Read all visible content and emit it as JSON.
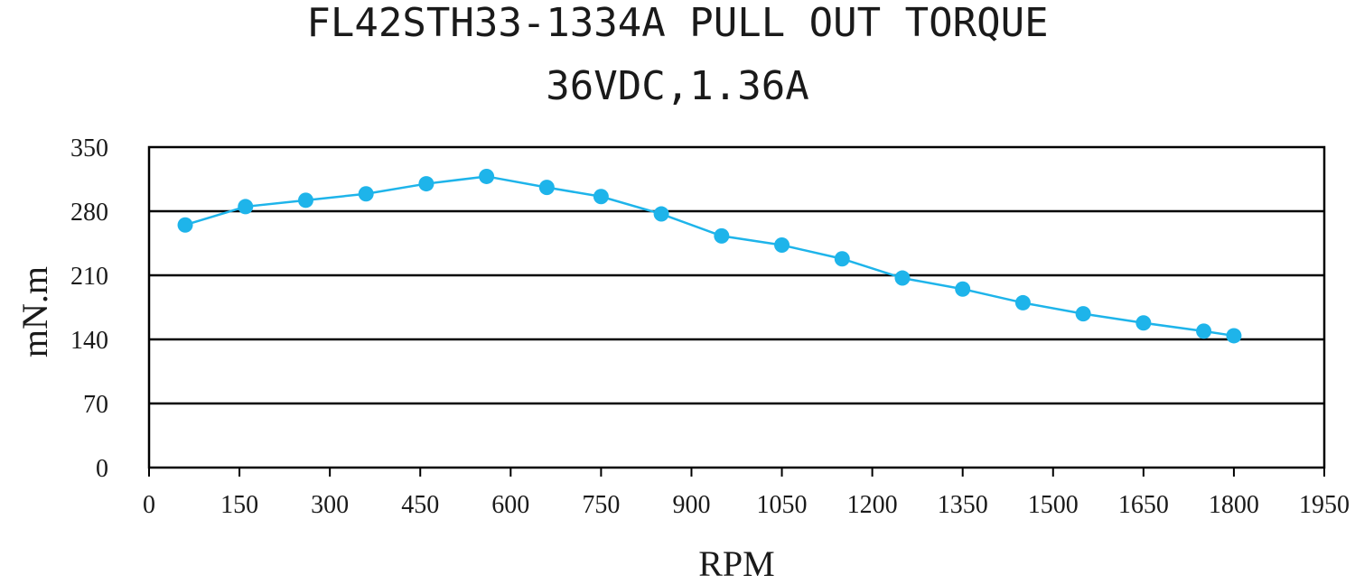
{
  "chart_data": {
    "type": "line",
    "title": "FL42STH33-1334A PULL OUT TORQUE",
    "subtitle": "36VDC,1.36A",
    "xlabel": "RPM",
    "ylabel": "mN.m",
    "xlim": [
      0,
      1950
    ],
    "ylim": [
      0,
      350
    ],
    "xticks": [
      0,
      150,
      300,
      450,
      600,
      750,
      900,
      1050,
      1200,
      1350,
      1500,
      1650,
      1800,
      1950
    ],
    "yticks": [
      0,
      70,
      140,
      210,
      280,
      350
    ],
    "grid": "horizontal",
    "legend": "none",
    "series": [
      {
        "color": "#1eb4ea",
        "x": [
          60,
          160,
          260,
          360,
          460,
          560,
          660,
          750,
          850,
          950,
          1050,
          1150,
          1250,
          1350,
          1450,
          1550,
          1650,
          1750,
          1800
        ],
        "y": [
          265,
          285,
          292,
          299,
          310,
          318,
          306,
          296,
          277,
          253,
          243,
          228,
          207,
          195,
          180,
          168,
          158,
          149,
          144
        ]
      }
    ]
  }
}
